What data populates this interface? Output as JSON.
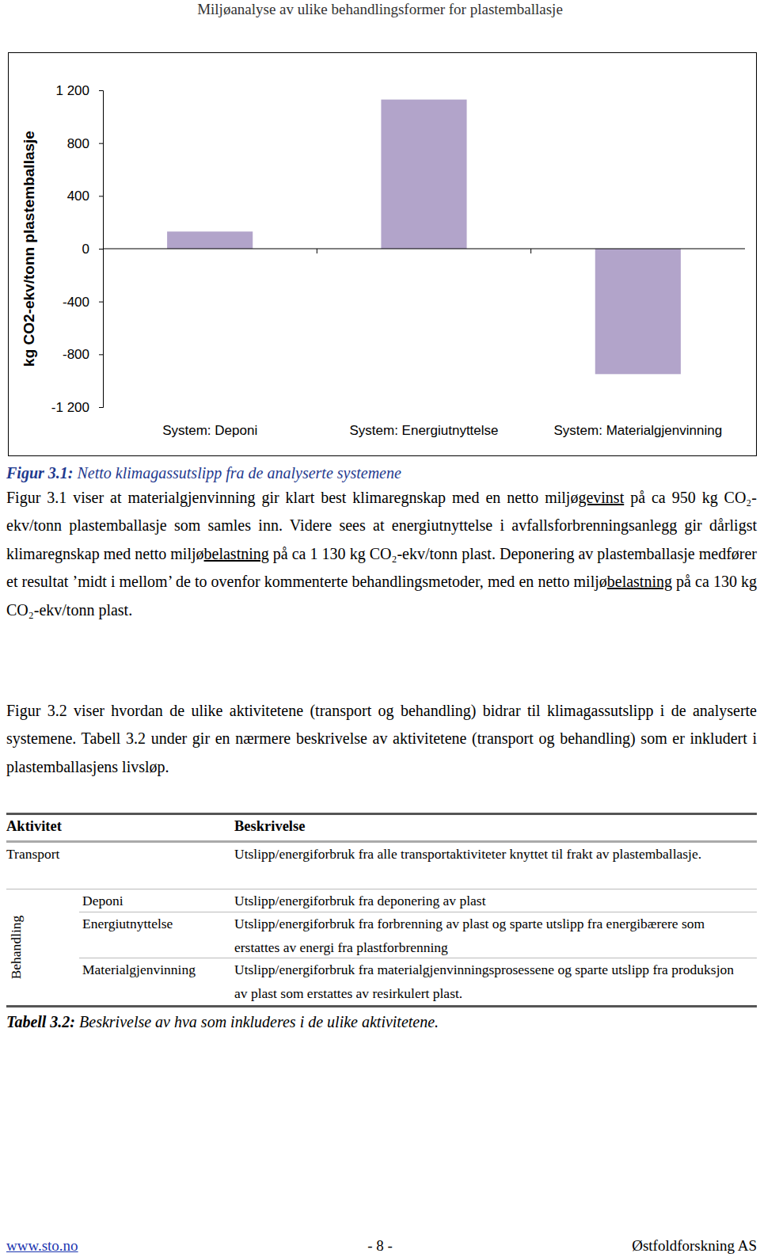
{
  "header": "Miljøanalyse av ulike behandlingsformer for plastemballasje",
  "chart_data": {
    "type": "bar",
    "ylabel": "kg CO2-ekv/tonn plastemballasje",
    "categories": [
      "System: Deponi",
      "System: Energiutnyttelse",
      "System: Materialgjenvinning"
    ],
    "values": [
      130,
      1130,
      -950
    ],
    "color": "#b2a4ca",
    "ylim": [
      -1200,
      1200
    ],
    "yticks": [
      {
        "value": -1200,
        "label": "-1 200"
      },
      -800,
      -400,
      0,
      400,
      800,
      {
        "value": 1200,
        "label": "1 200"
      }
    ],
    "grid": false
  },
  "figure_caption": {
    "label": "Figur 3.1:",
    "text": " Netto klimagassutslipp fra de analyserte systemene"
  },
  "paragraphs": [
    [
      "Figur 3.1 viser at materialgjenvinning gir klart best klimaregnskap med en netto miljø",
      {
        "text": "gevinst",
        "underline": true
      },
      " på ca 950 kg CO₂-ekv/tonn plastemballasje som samles inn. Videre sees at energiutnyttelse i avfallsforbrenningsanlegg gir dårligst klimaregnskap med netto miljø",
      {
        "text": "belastning",
        "underline": true
      },
      " på ca 1 130 kg CO₂-ekv/tonn plast. Deponering av plastemballasje medfører et resultat ’midt i mellom’ de to ovenfor kommenterte behandlingsmetoder, med en netto miljø",
      {
        "text": "belastning",
        "underline": true
      },
      " på ca 130 kg CO₂-ekv/tonn plast."
    ],
    [
      "Figur 3.2 viser hvordan de ulike aktivitetene (transport og behandling) bidrar til klimagassutslipp i de analyserte systemene. Tabell 3.2 under gir en nærmere beskrivelse av aktivitetene (transport og behandling) som er inkludert i plastemballasjens livsløp."
    ]
  ],
  "table": {
    "columns": [
      "Aktivitet",
      "Beskrivelse"
    ],
    "rows": [
      [
        "Transport",
        "Utslipp/energiforbruk fra alle transportaktiviteter knyttet til frakt av plastemballasje."
      ]
    ],
    "groups": [
      {
        "label": "Behandling",
        "rows": [
          [
            "Deponi",
            "Utslipp/energiforbruk fra deponering av plast"
          ],
          [
            "Energiutnyttelse",
            "Utslipp/energiforbruk fra forbrenning av plast og sparte utslipp fra energibærere som erstattes av energi fra plastforbrenning"
          ],
          [
            "Materialgjenvinning",
            "Utslipp/energiforbruk fra materialgjenvinningsprosessene og sparte utslipp fra produksjon av plast som erstattes av resirkulert plast."
          ]
        ]
      }
    ],
    "caption": {
      "label": "Tabell 3.2:",
      "text": " Beskrivelse av hva som inkluderes i de ulike aktivitetene."
    }
  },
  "footer": {
    "left": "www.sto.no",
    "center": "- 8 -",
    "right": "Østfoldforskning AS"
  }
}
